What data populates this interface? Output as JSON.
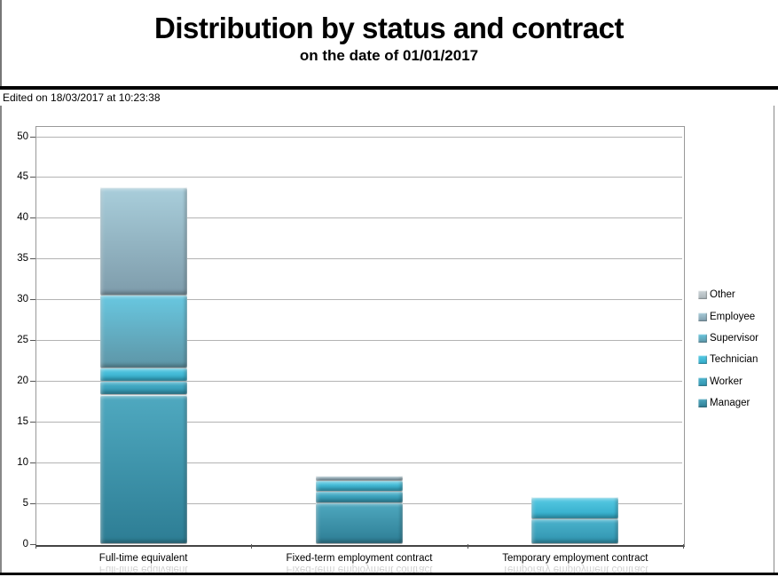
{
  "header": {
    "title": "Distribution by status and contract",
    "subtitle": "on the date of 01/01/2017",
    "edited_note": "Edited on 18/03/2017 at 10:23:38"
  },
  "chart_data": {
    "type": "bar",
    "stacked": true,
    "title": "Distribution by status and contract",
    "subtitle": "on the date of 01/01/2017",
    "categories": [
      "Full-time equivalent",
      "Fixed-term employment contract",
      "Temporary employment contract"
    ],
    "series": [
      {
        "name": "Manager",
        "values": [
          18.3,
          5.1,
          0
        ],
        "color_top": "#4fa9c0",
        "color_bottom": "#2d7d94"
      },
      {
        "name": "Worker",
        "values": [
          1.7,
          1.4,
          3.1
        ],
        "color_top": "#4cb4ce",
        "color_bottom": "#2f93ae"
      },
      {
        "name": "Technician",
        "values": [
          1.6,
          1.3,
          2.6
        ],
        "color_top": "#58cbe5",
        "color_bottom": "#2fa9c7"
      },
      {
        "name": "Supervisor",
        "values": [
          9.0,
          0,
          0
        ],
        "color_top": "#68c8e1",
        "color_bottom": "#5e95a6"
      },
      {
        "name": "Employee",
        "values": [
          13.1,
          0.5,
          0
        ],
        "color_top": "#a9cedb",
        "color_bottom": "#7e9cab"
      },
      {
        "name": "Other",
        "values": [
          0,
          0,
          0
        ],
        "color_top": "#ccd4d8",
        "color_bottom": "#aab4b8"
      }
    ],
    "totals": [
      43.7,
      8.3,
      5.7
    ],
    "ylim": [
      0,
      50
    ],
    "ytick_step": 5,
    "yticks": [
      0,
      5,
      10,
      15,
      20,
      25,
      30,
      35,
      40,
      45,
      50
    ],
    "grid": "horizontal",
    "legend_position": "right",
    "legend_order_top_to_bottom": [
      "Other",
      "Employee",
      "Supervisor",
      "Technician",
      "Worker",
      "Manager"
    ]
  }
}
